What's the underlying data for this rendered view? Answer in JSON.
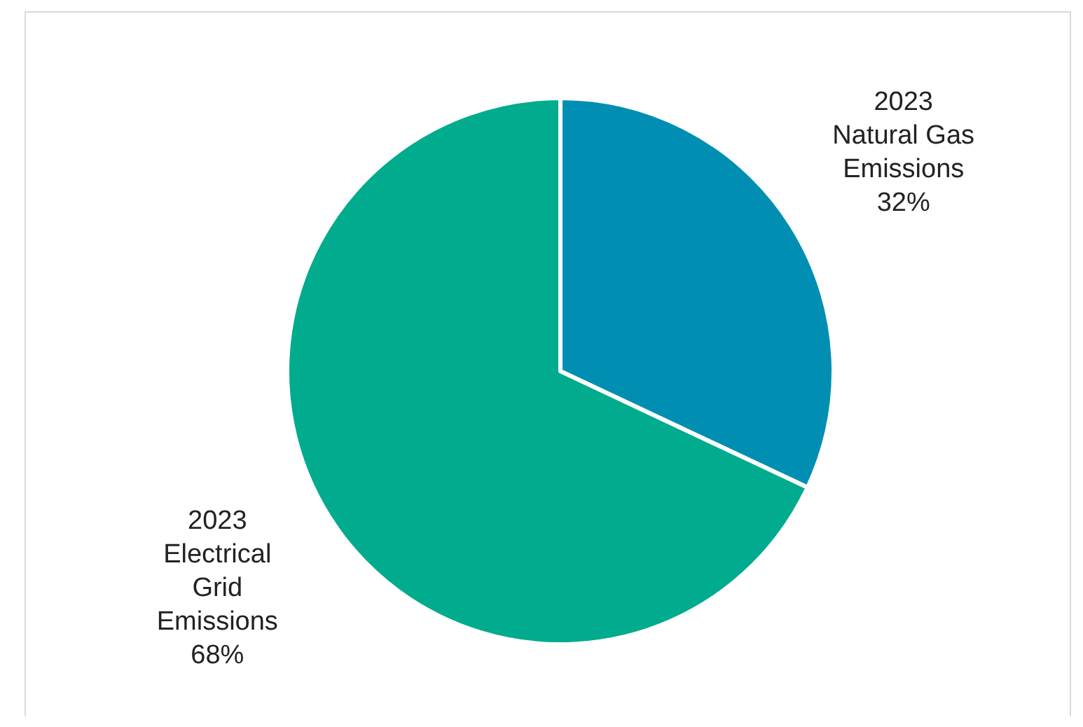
{
  "chart_data": {
    "type": "pie",
    "categories": [
      "2023 Natural Gas Emissions",
      "2023 Electrical Grid Emissions"
    ],
    "values": [
      32,
      68
    ],
    "colors": [
      "#008fb3",
      "#00ab8e"
    ],
    "value_labels": [
      "32%",
      "68%"
    ]
  }
}
